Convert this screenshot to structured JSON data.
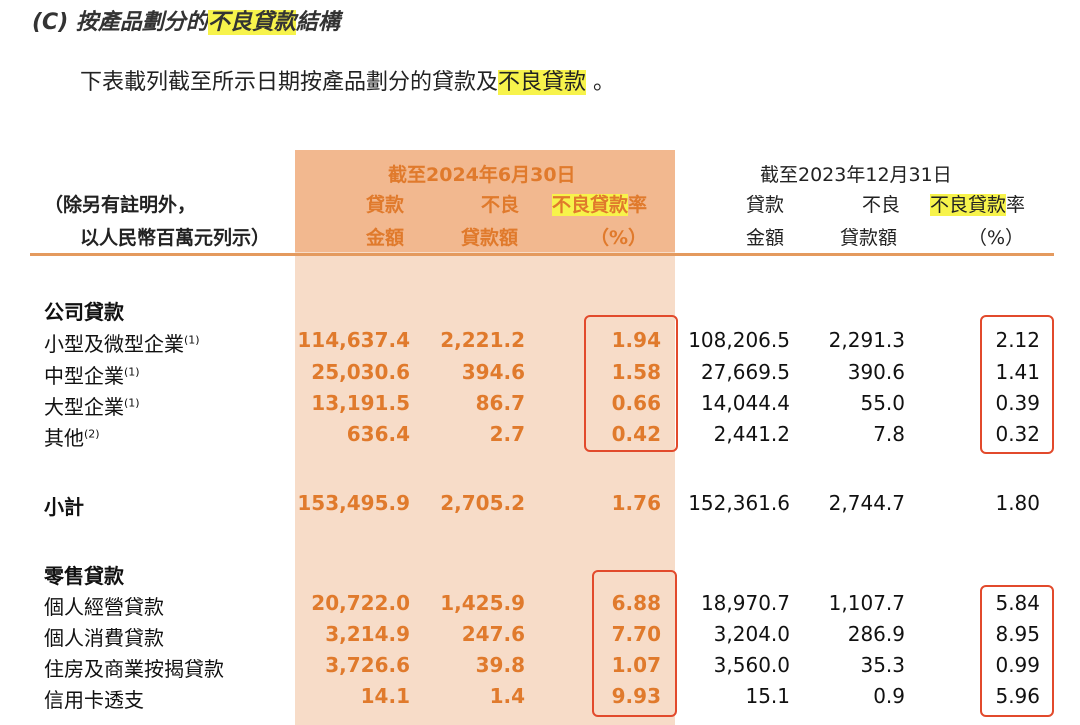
{
  "heading": {
    "prefix": "(C) 按產品劃分的",
    "highlight": "不良貸款",
    "suffix": "結構"
  },
  "intro": {
    "text": "下表載列截至所示日期按產品劃分的貸款及",
    "highlight": "不良貸款",
    "suffix": " 。"
  },
  "header": {
    "note_line1": "（除另有註明外，",
    "note_line2": "以人民幣百萬元列示）",
    "period_2024": "截至2024年6月30日",
    "period_2023": "截至2023年12月31日",
    "loan_line1": "貸款",
    "loan_line2": "金額",
    "npl_line1": "不良",
    "npl_line2": "貸款額",
    "ratio_highlight": "不良貸款",
    "ratio_suffix": "率",
    "ratio_unit": "（%）"
  },
  "corporate": {
    "title": "公司貸款",
    "rows": [
      {
        "label": "小型及微型企業",
        "note": "(1)",
        "loan_2024": "114,637.4",
        "npl_2024": "2,221.2",
        "ratio_2024": "1.94",
        "loan_2023": "108,206.5",
        "npl_2023": "2,291.3",
        "ratio_2023": "2.12"
      },
      {
        "label": "中型企業",
        "note": "(1)",
        "loan_2024": "25,030.6",
        "npl_2024": "394.6",
        "ratio_2024": "1.58",
        "loan_2023": "27,669.5",
        "npl_2023": "390.6",
        "ratio_2023": "1.41"
      },
      {
        "label": "大型企業",
        "note": "(1)",
        "loan_2024": "13,191.5",
        "npl_2024": "86.7",
        "ratio_2024": "0.66",
        "loan_2023": "14,044.4",
        "npl_2023": "55.0",
        "ratio_2023": "0.39"
      },
      {
        "label": "其他",
        "note": "(2)",
        "loan_2024": "636.4",
        "npl_2024": "2.7",
        "ratio_2024": "0.42",
        "loan_2023": "2,441.2",
        "npl_2023": "7.8",
        "ratio_2023": "0.32"
      }
    ]
  },
  "subtotal": {
    "label": "小計",
    "loan_2024": "153,495.9",
    "npl_2024": "2,705.2",
    "ratio_2024": "1.76",
    "loan_2023": "152,361.6",
    "npl_2023": "2,744.7",
    "ratio_2023": "1.80"
  },
  "retail": {
    "title": "零售貸款",
    "rows": [
      {
        "label": "個人經營貸款",
        "loan_2024": "20,722.0",
        "npl_2024": "1,425.9",
        "ratio_2024": "6.88",
        "loan_2023": "18,970.7",
        "npl_2023": "1,107.7",
        "ratio_2023": "5.84"
      },
      {
        "label": "個人消費貸款",
        "loan_2024": "3,214.9",
        "npl_2024": "247.6",
        "ratio_2024": "7.70",
        "loan_2023": "3,204.0",
        "npl_2023": "286.9",
        "ratio_2023": "8.95"
      },
      {
        "label": "住房及商業按揭貸款",
        "loan_2024": "3,726.6",
        "npl_2024": "39.8",
        "ratio_2024": "1.07",
        "loan_2023": "3,560.0",
        "npl_2023": "35.3",
        "ratio_2023": "0.99"
      },
      {
        "label": "信用卡透支",
        "loan_2024": "14.1",
        "npl_2024": "1.4",
        "ratio_2024": "9.93",
        "loan_2023": "15.1",
        "npl_2023": "0.9",
        "ratio_2023": "5.96"
      }
    ]
  },
  "colors": {
    "accent_orange": "#e07a2c",
    "header_band": "#f2b88f",
    "column_band": "#f7dcc8",
    "highlight_yellow": "#f7f34b",
    "annotation_red": "#e24a2c"
  }
}
